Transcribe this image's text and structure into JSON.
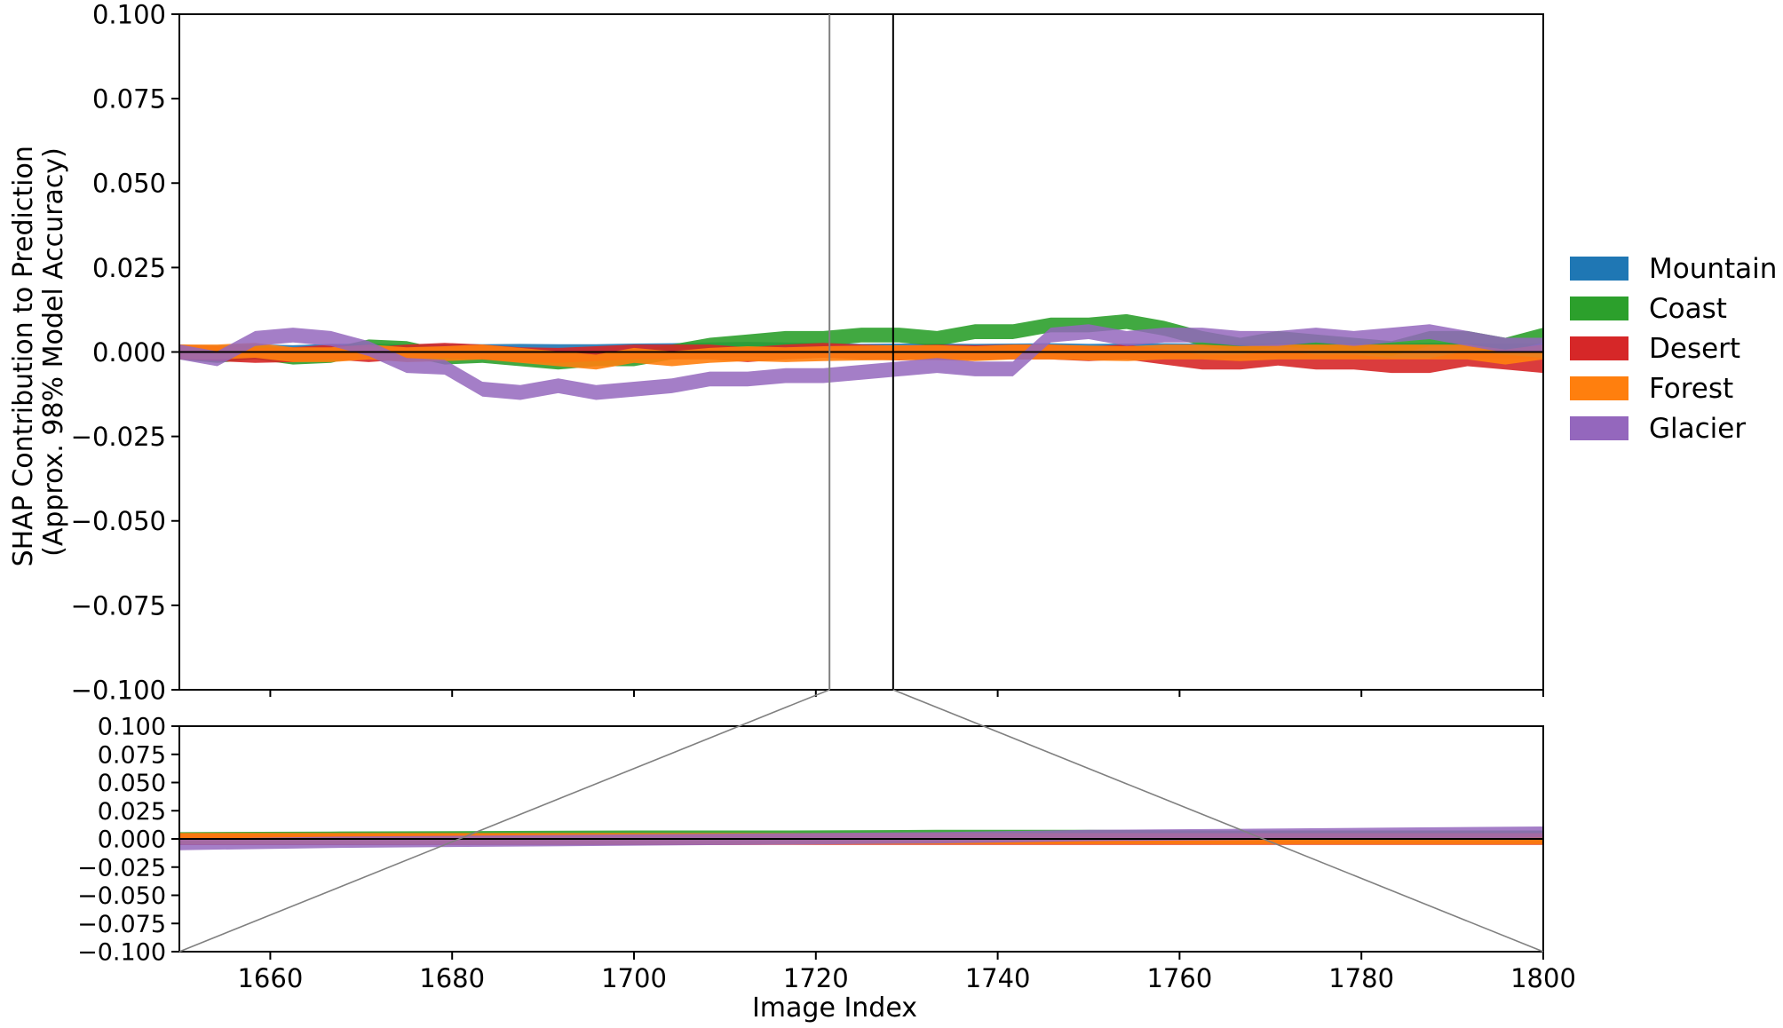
{
  "chart_data": [
    {
      "type": "area",
      "role": "detail",
      "title": "",
      "xlabel": "",
      "ylabel": "SHAP Contribution to Prediction\n(Approx. 98% Model Accuracy)",
      "ylabel_lines": [
        "SHAP Contribution to Prediction",
        "(Approx. 98% Model Accuracy)"
      ],
      "xlim": [
        1721.5,
        1728.5
      ],
      "ylim": [
        -0.1,
        0.1
      ],
      "yticks": [
        -0.1,
        -0.075,
        -0.05,
        -0.025,
        0.0,
        0.025,
        0.05,
        0.075,
        0.1
      ],
      "ytick_labels": [
        "−0.100",
        "−0.075",
        "−0.050",
        "−0.025",
        "0.000",
        "0.025",
        "0.050",
        "0.075",
        "0.100"
      ],
      "grid": false,
      "legend_position": "right",
      "series": [
        {
          "name": "Mountain",
          "color": "#1f77b4",
          "values": [
            0,
            -0.0003,
            0.0001,
            -0.0002,
            0.0002,
            0.0003,
            0.0001,
            0.0002,
            0.0001,
            0.0002,
            0.0001,
            0.0001,
            0.0003,
            0.0004,
            0.0006,
            0.0008,
            0.0006,
            0.0005,
            0.0002,
            0.0003,
            0.0003,
            0.0002,
            0.0003,
            0.0004,
            0.0002,
            0.0003,
            0.0004,
            0.0003,
            0.0005,
            0.0004,
            0.0004,
            0.0003,
            0.0004,
            0.0005,
            0.0004,
            0.0003,
            0.0005
          ]
        },
        {
          "name": "Coast",
          "color": "#2ca02c",
          "values": [
            0,
            -0.001,
            0,
            -0.0015,
            -0.001,
            0.0015,
            0.001,
            -0.0015,
            -0.001,
            -0.002,
            -0.003,
            -0.002,
            -0.002,
            0.0,
            0.002,
            0.003,
            0.004,
            0.004,
            0.005,
            0.005,
            0.004,
            0.006,
            0.006,
            0.008,
            0.008,
            0.009,
            0.007,
            0.004,
            0.002,
            0.004,
            0.003,
            0.002,
            0.001,
            0.004,
            0.004,
            0.002,
            0.005
          ]
        },
        {
          "name": "Desert",
          "color": "#d62728",
          "values": [
            0,
            -0.0005,
            -0.001,
            -0.0008,
            0.0,
            -0.0008,
            0.0,
            0.0005,
            0.0,
            -0.0008,
            -0.001,
            -0.0005,
            0.0,
            0.0,
            0.0,
            -0.0008,
            0.0,
            0.0005,
            0.0,
            -0.0003,
            0.0,
            -0.0002,
            0.0,
            0.0,
            -0.0005,
            0.0,
            -0.0015,
            -0.003,
            -0.003,
            -0.0018,
            -0.003,
            -0.003,
            -0.004,
            -0.004,
            -0.002,
            -0.003,
            -0.004
          ]
        },
        {
          "name": "Forest",
          "color": "#ff7f0e",
          "values": [
            0,
            0,
            0.0005,
            -0.0008,
            -0.0008,
            0.0,
            -0.0008,
            -0.0005,
            0.0,
            -0.001,
            -0.002,
            -0.003,
            -0.001,
            -0.002,
            -0.001,
            -0.0005,
            -0.0008,
            -0.0005,
            -0.0003,
            -0.0002,
            -0.0002,
            -0.0005,
            0.0,
            0.0,
            -0.0003,
            -0.0005,
            0.0,
            0.0,
            -0.0005,
            0.0,
            0.0,
            0.0,
            0.0,
            0.0,
            0.0,
            -0.0015,
            0.0
          ]
        },
        {
          "name": "Glacier",
          "color": "#9467bd",
          "values": [
            0,
            -0.002,
            0.004,
            0.005,
            0.004,
            0.001,
            -0.004,
            -0.0045,
            -0.011,
            -0.012,
            -0.01,
            -0.012,
            -0.011,
            -0.01,
            -0.008,
            -0.008,
            -0.007,
            -0.007,
            -0.006,
            -0.005,
            -0.004,
            -0.005,
            -0.005,
            0.005,
            0.006,
            0.004,
            0.005,
            0.005,
            0.004,
            0.004,
            0.005,
            0.004,
            0.005,
            0.006,
            0.004,
            0.002,
            0.002
          ]
        }
      ]
    },
    {
      "type": "area",
      "role": "overview",
      "title": "",
      "xlabel": "Image Index",
      "ylabel": "",
      "xlim": [
        1650,
        1800
      ],
      "ylim": [
        -0.1,
        0.1
      ],
      "xticks": [
        1660,
        1680,
        1700,
        1720,
        1740,
        1760,
        1780,
        1800
      ],
      "xtick_labels": [
        "1660",
        "1680",
        "1700",
        "1720",
        "1740",
        "1760",
        "1780",
        "1800"
      ],
      "yticks": [
        -0.1,
        -0.075,
        -0.05,
        -0.025,
        0.0,
        0.025,
        0.05,
        0.075,
        0.1
      ],
      "ytick_labels": [
        "−0.100",
        "−0.075",
        "−0.050",
        "−0.025",
        "0.000",
        "0.025",
        "0.050",
        "0.075",
        "0.100"
      ],
      "grid": false,
      "zoom_window": [
        1721.5,
        1728.5
      ],
      "series": [
        {
          "name": "Mountain",
          "color": "#1f77b4",
          "values": [
            0.0001,
            0.0001,
            0.0001,
            0.0002,
            0.0002,
            0.0002,
            0.0002,
            0.0002,
            0.0002,
            0.0002
          ]
        },
        {
          "name": "Coast",
          "color": "#2ca02c",
          "values": [
            0.001,
            0.0015,
            0.002,
            0.0025,
            0.0025,
            0.003,
            0.003,
            0.0025,
            0.0025,
            0.0025
          ]
        },
        {
          "name": "Desert",
          "color": "#d62728",
          "values": [
            -0.0005,
            -0.0005,
            -0.0004,
            -0.0004,
            -0.0003,
            -0.0003,
            -0.0003,
            -0.0003,
            -0.0003,
            -0.0003
          ]
        },
        {
          "name": "Forest",
          "color": "#ff7f0e",
          "values": [
            0.0003,
            0.0003,
            0.0002,
            0.0002,
            0.0002,
            0.0002,
            0.0002,
            0.0001,
            0.0001,
            0.0001
          ]
        },
        {
          "name": "Glacier",
          "color": "#9467bd",
          "values": [
            -0.005,
            -0.003,
            -0.002,
            -0.001,
            0.0,
            0.001,
            0.003,
            0.004,
            0.005,
            0.006
          ]
        }
      ]
    }
  ],
  "legend": {
    "entries": [
      {
        "label": "Mountain",
        "color": "#1f77b4"
      },
      {
        "label": "Coast",
        "color": "#2ca02c"
      },
      {
        "label": "Desert",
        "color": "#d62728"
      },
      {
        "label": "Forest",
        "color": "#ff7f0e"
      },
      {
        "label": "Glacier",
        "color": "#9467bd"
      }
    ]
  }
}
